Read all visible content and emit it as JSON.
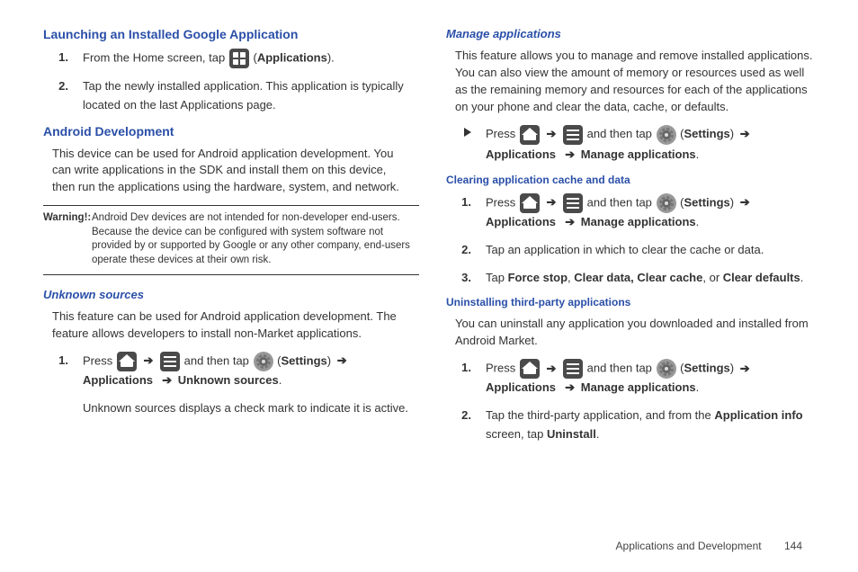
{
  "left": {
    "h1": "Launching an Installed Google Application",
    "s1": {
      "n1": "1.",
      "t1a": "From the Home screen, tap ",
      "t1b": " (",
      "t1c": "Applications",
      "t1d": ").",
      "n2": "2.",
      "t2": "Tap the newly installed application. This application is typically located on the last Applications page."
    },
    "h2": "Android Development",
    "p2": "This device can be used for Android application development. You can write applications in the SDK and install them on this device, then run the applications using the hardware, system, and network.",
    "warnLabel": "Warning!:",
    "warnText": "Android Dev devices are not intended for non-developer end-users. Because the device can be configured with system software not provided by or supported by Google or any other company, end-users operate these devices at their own risk.",
    "h3": "Unknown sources",
    "p3": "This feature can be used for Android application development. The feature allows developers to install non-Market applications.",
    "s3": {
      "n1": "1.",
      "press": "Press ",
      "andThenTap": " and then tap ",
      "settings": "Settings",
      "apps": "Applications",
      "us": "Unknown sources",
      "t2": "Unknown sources displays a check mark to indicate it is active."
    }
  },
  "right": {
    "h1": "Manage applications",
    "p1": "This feature allows you to manage and remove installed applications. You can also view the amount of memory or resources used as well as the remaining memory and resources for each of the applications on your phone and clear the data, cache, or defaults.",
    "bul": {
      "press": "Press ",
      "andThenTap": " and then tap ",
      "settings": "Settings",
      "apps": "Applications",
      "ma": "Manage applications"
    },
    "h2": "Clearing application cache and data",
    "s2": {
      "n1": "1.",
      "press": "Press ",
      "andThenTap": " and then tap ",
      "settings": "Settings",
      "apps": "Applications",
      "ma": "Manage applications",
      "n2": "2.",
      "t2": "Tap an application in which to clear the cache or data.",
      "n3": "3.",
      "t3a": "Tap ",
      "t3b": "Force stop",
      "t3c": ", ",
      "t3d": "Clear data, Clear cache",
      "t3e": ", or ",
      "t3f": "Clear defaults",
      "t3g": "."
    },
    "h3": "Uninstalling third-party applications",
    "p3": "You can uninstall any application you downloaded and installed from Android Market.",
    "s3": {
      "n1": "1.",
      "press": "Press ",
      "andThenTap": " and then tap ",
      "settings": "Settings",
      "apps": "Applications",
      "ma": "Manage applications",
      "n2": "2.",
      "t2a": "Tap the third-party application, and from the ",
      "t2b": "Application info",
      "t2c": " screen, tap ",
      "t2d": "Uninstall",
      "t2e": "."
    }
  },
  "footer": {
    "section": "Applications and Development",
    "page": "144"
  },
  "glyphs": {
    "arrow": "➔"
  }
}
